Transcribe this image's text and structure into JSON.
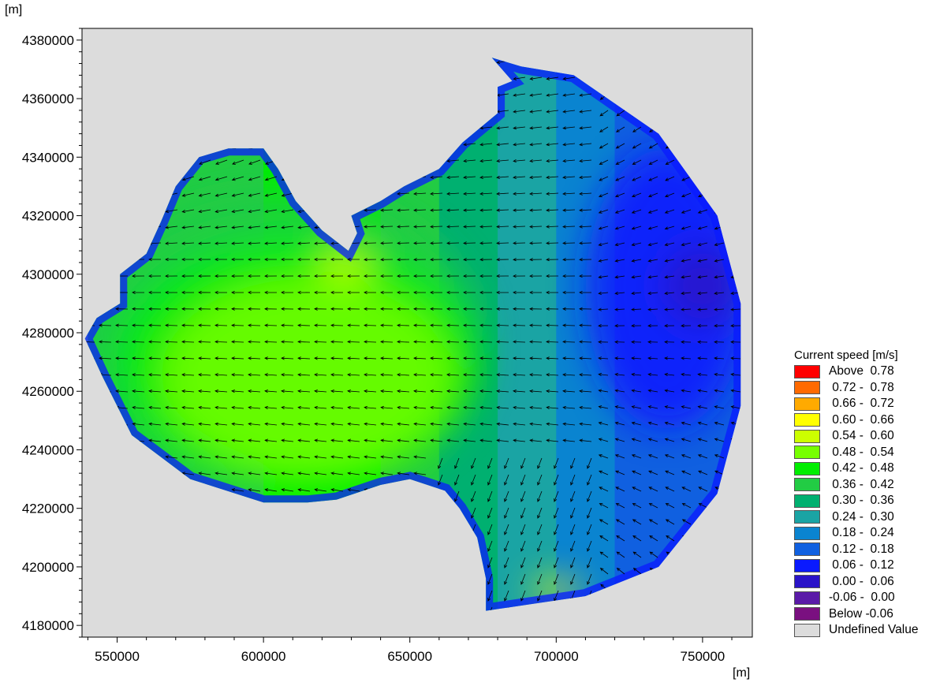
{
  "chart_data": {
    "type": "heatmap",
    "subtype": "vector-field-map",
    "xlabel": "[m]",
    "ylabel": "[m]",
    "xlim": [
      538000,
      767000
    ],
    "ylim": [
      4176000,
      4384000
    ],
    "x_ticks": [
      550000,
      600000,
      650000,
      700000,
      750000
    ],
    "y_ticks": [
      4180000,
      4200000,
      4220000,
      4240000,
      4260000,
      4280000,
      4300000,
      4320000,
      4340000,
      4360000,
      4380000
    ],
    "x_tick_labels": [
      "550000",
      "600000",
      "650000",
      "700000",
      "750000"
    ],
    "y_tick_labels": [
      "4180000",
      "4200000",
      "4220000",
      "4240000",
      "4260000",
      "4280000",
      "4300000",
      "4320000",
      "4340000",
      "4360000",
      "4380000"
    ],
    "background_color": "#dcdcdc",
    "domain_outline": [
      [
        678000,
        4374000
      ],
      [
        688000,
        4371000
      ],
      [
        706000,
        4368000
      ],
      [
        735000,
        4348000
      ],
      [
        755000,
        4320000
      ],
      [
        763000,
        4290000
      ],
      [
        763000,
        4255000
      ],
      [
        755000,
        4225000
      ],
      [
        735000,
        4200000
      ],
      [
        710000,
        4190000
      ],
      [
        676000,
        4185000
      ],
      [
        676000,
        4196000
      ],
      [
        673000,
        4210000
      ],
      [
        667000,
        4220000
      ],
      [
        662000,
        4226000
      ],
      [
        650000,
        4230000
      ],
      [
        640000,
        4228000
      ],
      [
        625000,
        4223000
      ],
      [
        615000,
        4222000
      ],
      [
        600000,
        4222000
      ],
      [
        575000,
        4230000
      ],
      [
        555000,
        4245000
      ],
      [
        545000,
        4265000
      ],
      [
        539000,
        4278000
      ],
      [
        543000,
        4285000
      ],
      [
        551000,
        4290000
      ],
      [
        551000,
        4300000
      ],
      [
        560000,
        4307000
      ],
      [
        565000,
        4318000
      ],
      [
        570000,
        4330000
      ],
      [
        578000,
        4340000
      ],
      [
        588000,
        4343000
      ],
      [
        600000,
        4343000
      ],
      [
        605000,
        4336000
      ],
      [
        611000,
        4325000
      ],
      [
        620000,
        4315000
      ],
      [
        629000,
        4308000
      ],
      [
        632000,
        4314000
      ],
      [
        630000,
        4320000
      ],
      [
        640000,
        4325000
      ],
      [
        648000,
        4330000
      ],
      [
        660000,
        4336000
      ],
      [
        668000,
        4345000
      ],
      [
        680000,
        4355000
      ],
      [
        680000,
        4364000
      ],
      [
        685000,
        4366000
      ]
    ],
    "speed_field": [
      {
        "x": 606000,
        "y": 4278000,
        "rx": 68000,
        "ry": 50000,
        "speed": 0.39
      },
      {
        "x": 612000,
        "y": 4270000,
        "rx": 62000,
        "ry": 42000,
        "speed": 0.45
      },
      {
        "x": 615000,
        "y": 4265000,
        "rx": 50000,
        "ry": 34000,
        "speed": 0.48
      },
      {
        "x": 628000,
        "y": 4303000,
        "rx": 9000,
        "ry": 6000,
        "speed": 0.57
      },
      {
        "x": 700000,
        "y": 4192000,
        "rx": 9000,
        "ry": 3500,
        "speed": 0.62
      },
      {
        "x": 660000,
        "y": 4360000,
        "rx": 12000,
        "ry": 5000,
        "speed": 0.1
      },
      {
        "x": 738000,
        "y": 4295000,
        "rx": 28000,
        "ry": 48000,
        "speed": 0.09
      },
      {
        "x": 750000,
        "y": 4296000,
        "rx": 14000,
        "ry": 14000,
        "speed": 0.05
      }
    ],
    "current_direction": "westward",
    "legend_title": "Current speed [m/s]",
    "legend": [
      {
        "label": "Above  0.78",
        "color": "#ff0000"
      },
      {
        "label": " 0.72 -  0.78",
        "color": "#ff6a00"
      },
      {
        "label": " 0.66 -  0.72",
        "color": "#ffaa00"
      },
      {
        "label": " 0.60 -  0.66",
        "color": "#ffff00"
      },
      {
        "label": " 0.54 -  0.60",
        "color": "#ccff00"
      },
      {
        "label": " 0.48 -  0.54",
        "color": "#77ff00"
      },
      {
        "label": " 0.42 -  0.48",
        "color": "#00ee00"
      },
      {
        "label": " 0.36 -  0.42",
        "color": "#22cc44"
      },
      {
        "label": " 0.30 -  0.36",
        "color": "#00b070"
      },
      {
        "label": " 0.24 -  0.30",
        "color": "#1aa4a4"
      },
      {
        "label": " 0.18 -  0.24",
        "color": "#0a84d0"
      },
      {
        "label": " 0.12 -  0.18",
        "color": "#1060e0"
      },
      {
        "label": " 0.06 -  0.12",
        "color": "#0a1aff"
      },
      {
        "label": " 0.00 -  0.06",
        "color": "#2a14c8"
      },
      {
        "label": "-0.06 -  0.00",
        "color": "#5a1aa8"
      },
      {
        "label": "Below -0.06",
        "color": "#7a1080"
      },
      {
        "label": "Undefined Value",
        "color": "#dcdcdc"
      }
    ]
  }
}
